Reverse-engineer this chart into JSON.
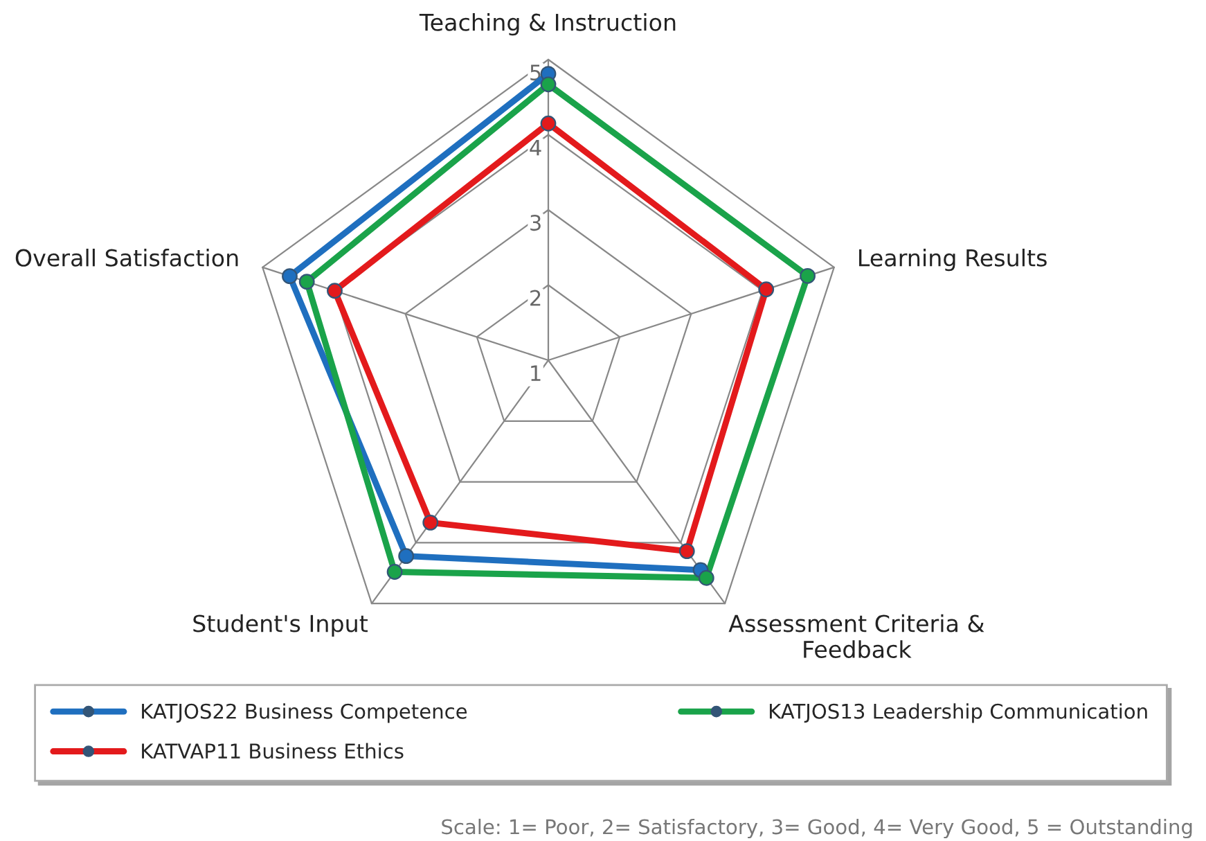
{
  "chart_data": {
    "type": "radar",
    "categories": [
      "Teaching & Instruction",
      "Learning Results",
      "Assessment Criteria &\nFeedback",
      "Student's Input",
      "Overall Satisfaction"
    ],
    "series": [
      {
        "name": "KATJOS22 Business Competence",
        "color": "#1f6fbf",
        "values": [
          4.81,
          null,
          4.45,
          4.22,
          4.62
        ]
      },
      {
        "name": "KATJOS13 Leadership Communication",
        "color": "#1aa34a",
        "values": [
          4.67,
          4.63,
          4.58,
          4.48,
          4.38
        ]
      },
      {
        "name": "KATVAP11 Business Ethics",
        "color": "#e31a1c",
        "values": [
          4.15,
          4.05,
          4.14,
          3.67,
          3.99
        ]
      }
    ],
    "ylim": [
      1,
      5
    ],
    "yticks": [
      1,
      2,
      3,
      4,
      5
    ],
    "grid": true,
    "legend": "bottom",
    "marker": "circle",
    "line_style": "solid",
    "annotations": [
      "Scale: 1= Poor, 2= Satisfactory, 3= Good, 4= Very Good, 5 = Outstanding"
    ]
  }
}
